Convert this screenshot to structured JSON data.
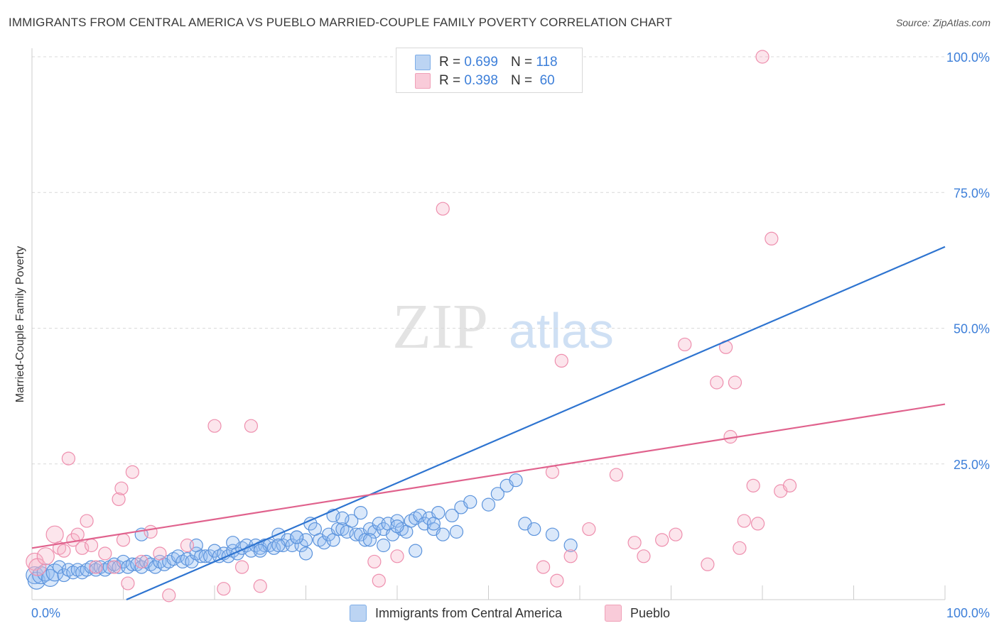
{
  "title": "IMMIGRANTS FROM CENTRAL AMERICA VS PUEBLO MARRIED-COUPLE FAMILY POVERTY CORRELATION CHART",
  "source": "Source: ZipAtlas.com",
  "watermark": {
    "zip": "ZIP",
    "atlas": "atlas"
  },
  "legend_top": [
    {
      "r_label": "R =",
      "r_value": "0.699",
      "n_label": "N =",
      "n_value": "118",
      "color": "#7eaee8",
      "fill": "#bcd4f3"
    },
    {
      "r_label": "R =",
      "r_value": "0.398",
      "n_label": "N =",
      "n_value": "60",
      "color": "#f0a0b8",
      "fill": "#f9cbd9"
    }
  ],
  "legend_bottom": [
    {
      "label": "Immigrants from Central America",
      "color": "#7eaee8",
      "fill": "#bcd4f3"
    },
    {
      "label": "Pueblo",
      "color": "#f0a0b8",
      "fill": "#f9cbd9"
    }
  ],
  "chart_data": {
    "type": "scatter",
    "title": "IMMIGRANTS FROM CENTRAL AMERICA VS PUEBLO MARRIED-COUPLE FAMILY POVERTY CORRELATION CHART",
    "xlabel": "",
    "ylabel": "Married-Couple Family Poverty",
    "xlim": [
      0,
      100
    ],
    "ylim": [
      0,
      100
    ],
    "x_tick_labels": [
      "0.0%",
      "100.0%"
    ],
    "y_tick_labels": [
      "25.0%",
      "50.0%",
      "75.0%",
      "100.0%"
    ],
    "y_ticks": [
      25,
      50,
      75,
      100
    ],
    "grid": true,
    "series": [
      {
        "name": "Immigrants from Central America",
        "color": "#5b93dc",
        "fill": "rgba(150,190,240,0.35)",
        "trend": {
          "x": [
            0,
            100
          ],
          "y": [
            -7.5,
            65
          ],
          "color": "#2e74d0"
        },
        "points": [
          [
            0.3,
            4.5
          ],
          [
            0.5,
            3.5
          ],
          [
            1,
            4.5
          ],
          [
            1.5,
            5
          ],
          [
            2,
            4
          ],
          [
            2.5,
            5
          ],
          [
            3,
            6
          ],
          [
            3.5,
            4.5
          ],
          [
            4,
            5.5
          ],
          [
            4.5,
            5
          ],
          [
            5,
            5.5
          ],
          [
            5.5,
            5
          ],
          [
            6,
            5.5
          ],
          [
            6.5,
            6
          ],
          [
            7,
            5.5
          ],
          [
            7.5,
            6
          ],
          [
            8,
            5.5
          ],
          [
            8.5,
            6
          ],
          [
            9,
            6.5
          ],
          [
            9.5,
            6
          ],
          [
            10,
            7
          ],
          [
            10.5,
            6
          ],
          [
            11,
            6.5
          ],
          [
            11.5,
            6.5
          ],
          [
            12,
            6
          ],
          [
            12.5,
            7
          ],
          [
            13,
            6.5
          ],
          [
            13.5,
            6
          ],
          [
            14,
            7
          ],
          [
            14.5,
            6.5
          ],
          [
            15,
            7
          ],
          [
            15.5,
            7.5
          ],
          [
            16,
            8
          ],
          [
            16.5,
            7
          ],
          [
            17,
            7.5
          ],
          [
            17.5,
            7
          ],
          [
            18,
            8.5
          ],
          [
            18.5,
            8
          ],
          [
            19,
            8
          ],
          [
            19.5,
            8
          ],
          [
            20,
            9
          ],
          [
            20.5,
            8
          ],
          [
            21,
            8.5
          ],
          [
            21.5,
            8
          ],
          [
            22,
            9
          ],
          [
            22.5,
            8.5
          ],
          [
            23,
            9.5
          ],
          [
            23.5,
            10
          ],
          [
            24,
            9
          ],
          [
            24.5,
            10
          ],
          [
            25,
            9.5
          ],
          [
            25.5,
            10
          ],
          [
            26,
            10
          ],
          [
            26.5,
            9.5
          ],
          [
            27,
            12
          ],
          [
            27.5,
            10
          ],
          [
            28,
            11
          ],
          [
            28.5,
            10
          ],
          [
            29,
            11.5
          ],
          [
            29.5,
            10
          ],
          [
            30,
            11
          ],
          [
            30.5,
            14
          ],
          [
            31,
            13
          ],
          [
            31.5,
            11
          ],
          [
            32,
            10.5
          ],
          [
            32.5,
            12
          ],
          [
            33,
            11
          ],
          [
            33.5,
            13
          ],
          [
            34,
            13
          ],
          [
            34.5,
            12.5
          ],
          [
            35,
            14.5
          ],
          [
            35.5,
            12
          ],
          [
            36,
            12
          ],
          [
            36.5,
            11
          ],
          [
            37,
            13
          ],
          [
            37.5,
            12.5
          ],
          [
            38,
            14
          ],
          [
            38.5,
            13
          ],
          [
            39,
            14
          ],
          [
            39.5,
            12
          ],
          [
            40,
            14.5
          ],
          [
            40.5,
            13
          ],
          [
            41,
            12.5
          ],
          [
            41.5,
            14.5
          ],
          [
            42,
            15
          ],
          [
            42.5,
            15.5
          ],
          [
            43,
            14
          ],
          [
            43.5,
            15
          ],
          [
            44,
            13
          ],
          [
            44.5,
            16
          ],
          [
            12,
            12
          ],
          [
            18,
            10
          ],
          [
            22,
            10.5
          ],
          [
            27,
            10
          ],
          [
            30,
            8.5
          ],
          [
            33,
            15.5
          ],
          [
            36,
            16
          ],
          [
            38.5,
            10
          ],
          [
            45,
            12
          ],
          [
            46,
            15.5
          ],
          [
            47,
            17
          ],
          [
            48,
            18
          ],
          [
            50,
            17.5
          ],
          [
            51,
            19.5
          ],
          [
            52,
            21
          ],
          [
            53,
            22
          ],
          [
            54,
            14
          ],
          [
            55,
            13
          ],
          [
            57,
            12
          ],
          [
            59,
            10
          ],
          [
            25,
            9
          ],
          [
            29,
            11.5
          ],
          [
            34,
            15
          ],
          [
            37,
            11
          ],
          [
            40,
            13.5
          ],
          [
            42,
            9
          ],
          [
            44,
            14
          ],
          [
            46.5,
            12.5
          ]
        ]
      },
      {
        "name": "Pueblo",
        "color": "#ee8fae",
        "fill": "rgba(245,180,200,0.35)",
        "trend": {
          "x": [
            0,
            100
          ],
          "y": [
            9.5,
            36
          ],
          "color": "#e0628d"
        },
        "points": [
          [
            0.3,
            7
          ],
          [
            0.6,
            6
          ],
          [
            1.5,
            8
          ],
          [
            2.5,
            12
          ],
          [
            3,
            9.5
          ],
          [
            3.5,
            9
          ],
          [
            4,
            26
          ],
          [
            4.5,
            11
          ],
          [
            5,
            12
          ],
          [
            5.5,
            9.5
          ],
          [
            6,
            14.5
          ],
          [
            6.5,
            10
          ],
          [
            7,
            6
          ],
          [
            8,
            8.5
          ],
          [
            9,
            6
          ],
          [
            9.5,
            18.5
          ],
          [
            9.8,
            20.5
          ],
          [
            10,
            11
          ],
          [
            10.5,
            3
          ],
          [
            11,
            23.5
          ],
          [
            12,
            7
          ],
          [
            13,
            12.5
          ],
          [
            14,
            8.5
          ],
          [
            15,
            0.8
          ],
          [
            17,
            10
          ],
          [
            20,
            32
          ],
          [
            21,
            2
          ],
          [
            23,
            6
          ],
          [
            24,
            32
          ],
          [
            25,
            2.5
          ],
          [
            37.5,
            7
          ],
          [
            38,
            3.5
          ],
          [
            40,
            8
          ],
          [
            45,
            72
          ],
          [
            47,
            100
          ],
          [
            56,
            6
          ],
          [
            57,
            23.5
          ],
          [
            58,
            44
          ],
          [
            59,
            8
          ],
          [
            61,
            13
          ],
          [
            64,
            23
          ],
          [
            66,
            10.5
          ],
          [
            67,
            8
          ],
          [
            69,
            11
          ],
          [
            70.5,
            12
          ],
          [
            71.5,
            47
          ],
          [
            74,
            6.5
          ],
          [
            75,
            40
          ],
          [
            76,
            46.5
          ],
          [
            77,
            40
          ],
          [
            77.5,
            9.5
          ],
          [
            78,
            14.5
          ],
          [
            79,
            21
          ],
          [
            79.5,
            14
          ],
          [
            80,
            100
          ],
          [
            81,
            66.5
          ],
          [
            82,
            20
          ],
          [
            83,
            21
          ],
          [
            57.5,
            3.5
          ],
          [
            76.5,
            30
          ]
        ]
      }
    ]
  }
}
